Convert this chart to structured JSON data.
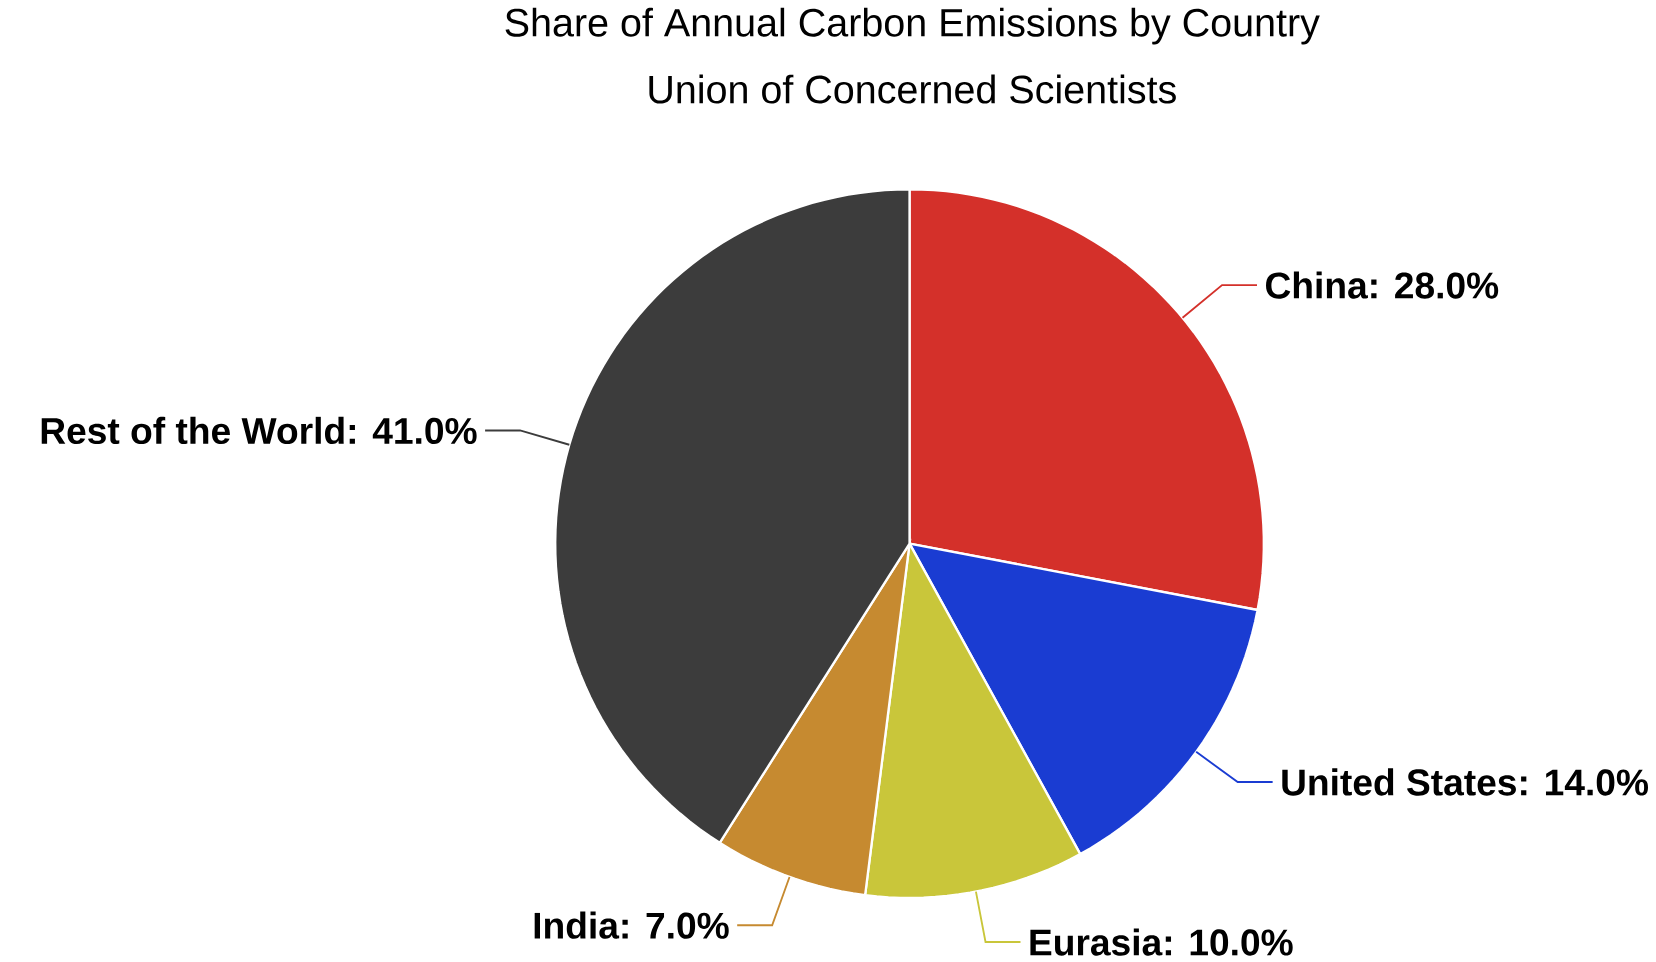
{
  "chart_data": {
    "type": "pie",
    "title": "Share of Annual Carbon Emissions by Country",
    "subtitle": "Union of Concerned Scientists",
    "categories": [
      "China",
      "United States",
      "Eurasia",
      "India",
      "Rest of the World"
    ],
    "values": [
      28,
      14,
      10,
      7,
      41
    ],
    "colors": [
      "#d4302a",
      "#1a3cd2",
      "#c9c63a",
      "#c68a30",
      "#3c3c3c"
    ],
    "value_labels": [
      ": 28.0%",
      ": 14.0%",
      ": 10.0%",
      ": 7.0%",
      ": 41.0%"
    ]
  }
}
